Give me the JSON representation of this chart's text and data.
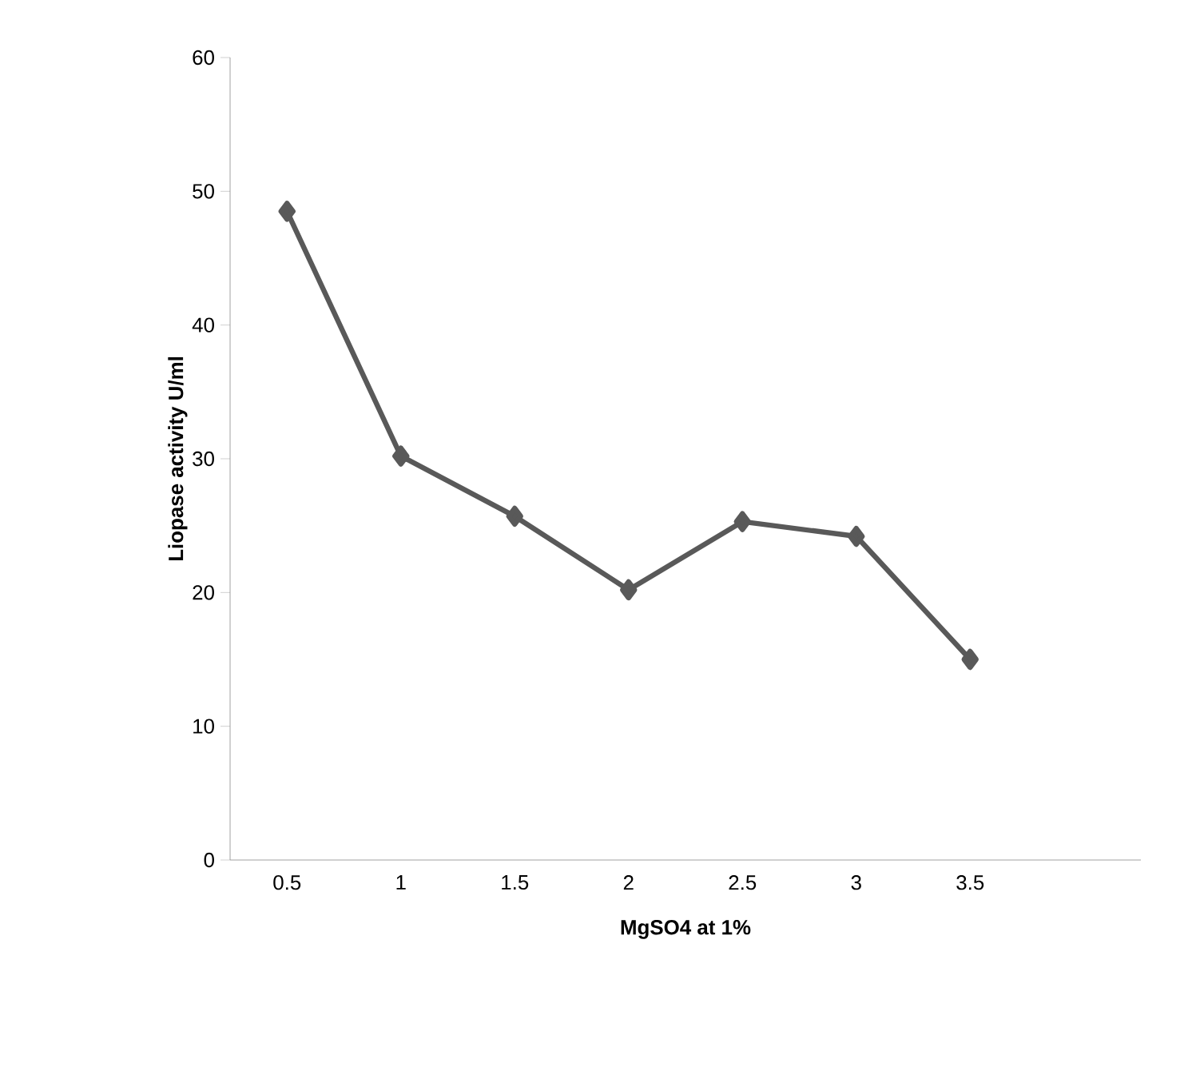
{
  "chart_data": {
    "type": "line",
    "xlabel": "MgSO4 at 1%",
    "ylabel": "Liopase activity U/ml",
    "categories": [
      "0.5",
      "1",
      "1.5",
      "2",
      "2.5",
      "3",
      "3.5",
      null
    ],
    "series": [
      {
        "color": "#595959",
        "values": [
          48.5,
          30.2,
          25.7,
          20.2,
          25.3,
          24.2,
          15.0,
          null
        ]
      }
    ],
    "ylim": [
      0,
      60
    ],
    "yticks": [
      0,
      10,
      20,
      30,
      40,
      50,
      60
    ],
    "marker": "diamond",
    "line_style": "solid",
    "grid": false
  }
}
